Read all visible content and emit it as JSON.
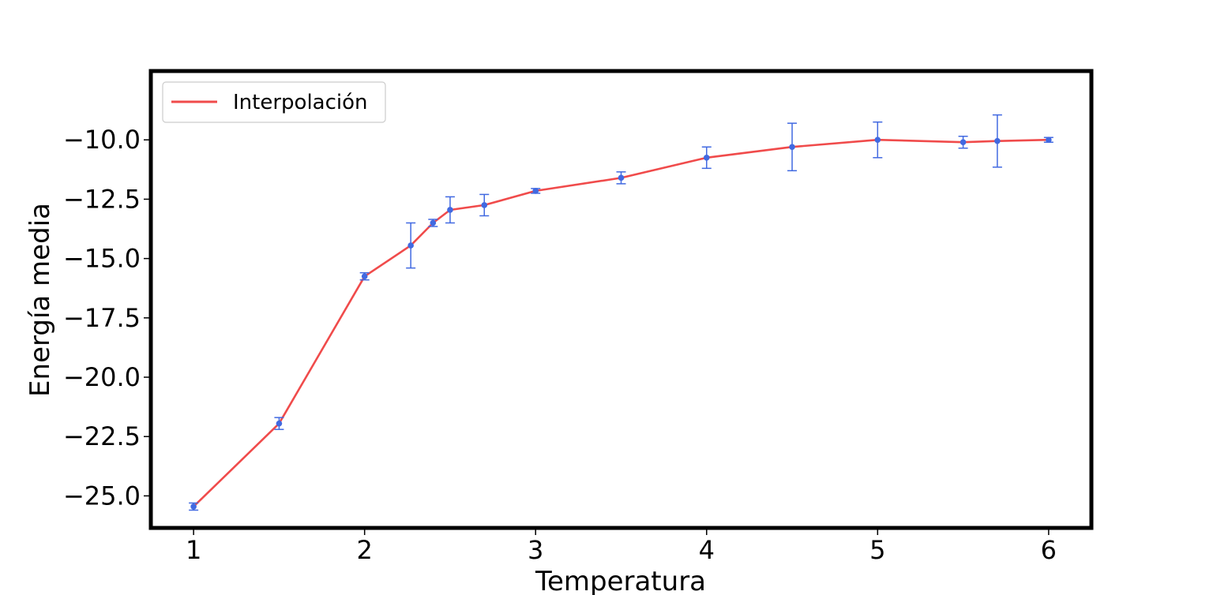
{
  "chart_data": {
    "type": "line",
    "xlabel": "Temperatura",
    "ylabel": "Energía media",
    "xlim": [
      0.75,
      6.25
    ],
    "ylim": [
      -26.35,
      -7.1
    ],
    "x_ticks": [
      1,
      2,
      3,
      4,
      5,
      6
    ],
    "x_tick_labels": [
      "1",
      "2",
      "3",
      "4",
      "5",
      "6"
    ],
    "y_ticks": [
      -25.0,
      -22.5,
      -20.0,
      -17.5,
      -15.0,
      -12.5,
      -10.0
    ],
    "y_tick_labels": [
      "−25.0",
      "−22.5",
      "−20.0",
      "−17.5",
      "−15.0",
      "−12.5",
      "−10.0"
    ],
    "grid": false,
    "legend": {
      "placement": "top-left",
      "entries": [
        "Interpolación"
      ]
    },
    "series": [
      {
        "name": "Interpolación",
        "kind": "line",
        "color": "#f04b4b",
        "x": [
          1.0,
          1.5,
          2.0,
          2.27,
          2.4,
          2.5,
          2.7,
          3.0,
          3.5,
          4.0,
          4.5,
          5.0,
          5.5,
          5.7,
          6.0
        ],
        "y": [
          -25.45,
          -21.95,
          -15.75,
          -14.45,
          -13.5,
          -12.95,
          -12.75,
          -12.15,
          -11.6,
          -10.75,
          -10.3,
          -10.0,
          -10.1,
          -10.05,
          -10.0
        ]
      },
      {
        "kind": "errorbar",
        "color": "#4169e1",
        "x": [
          1.0,
          1.5,
          2.0,
          2.27,
          2.4,
          2.5,
          2.7,
          3.0,
          3.5,
          4.0,
          4.5,
          5.0,
          5.5,
          5.7,
          6.0
        ],
        "y": [
          -25.45,
          -21.95,
          -15.75,
          -14.45,
          -13.5,
          -12.95,
          -12.75,
          -12.15,
          -11.6,
          -10.75,
          -10.3,
          -10.0,
          -10.1,
          -10.05,
          -10.0
        ],
        "yerr": [
          0.15,
          0.25,
          0.15,
          0.95,
          0.15,
          0.55,
          0.45,
          0.1,
          0.25,
          0.45,
          1.0,
          0.75,
          0.25,
          1.1,
          0.1
        ]
      }
    ]
  }
}
